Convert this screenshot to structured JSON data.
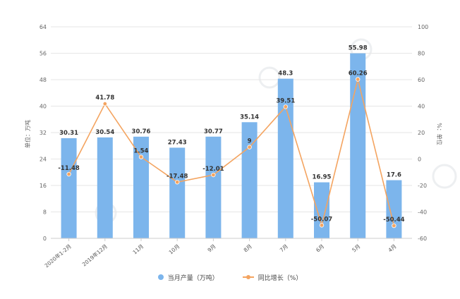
{
  "chart_data": {
    "type": "bar",
    "categories": [
      "2020年1-2月",
      "2019年12月",
      "11月",
      "10月",
      "9月",
      "8月",
      "7月",
      "6月",
      "5月",
      "4月"
    ],
    "series": [
      {
        "name": "当月产量（万吨）",
        "kind": "bar",
        "axis": "left",
        "color": "#7cb5ec",
        "values": [
          30.31,
          30.54,
          30.76,
          27.43,
          30.77,
          35.14,
          48.3,
          16.95,
          55.98,
          17.6
        ],
        "labels": [
          "30.31",
          "30.54",
          "30.76",
          "27.43",
          "30.77",
          "35.14",
          "48.3",
          "16.95",
          "55.98",
          "17.6"
        ]
      },
      {
        "name": "同比增长（%）",
        "kind": "line",
        "axis": "right",
        "color": "#f4a460",
        "values": [
          -11.48,
          41.78,
          1.54,
          -17.48,
          -12.01,
          9,
          39.51,
          -50.07,
          60.26,
          -50.44
        ],
        "labels": [
          "-11.48",
          "41.78",
          "1.54",
          "-17.48",
          "-12.01",
          "9",
          "39.51",
          "-50.07",
          "60.26",
          "-50.44"
        ]
      }
    ],
    "ylabel": "单位：万吨",
    "y2label": "%：单位",
    "ylim": [
      0,
      64
    ],
    "yticks": [
      0,
      8,
      16,
      24,
      32,
      40,
      48,
      56,
      64
    ],
    "y2lim": [
      -60,
      100
    ],
    "y2ticks": [
      -60,
      -40,
      -20,
      0,
      20,
      40,
      60,
      80,
      100
    ],
    "grid": true,
    "legend_position": "bottom-center"
  },
  "legend": {
    "bar_label": "当月产量（万吨）",
    "line_label": "同比增长（%）"
  }
}
